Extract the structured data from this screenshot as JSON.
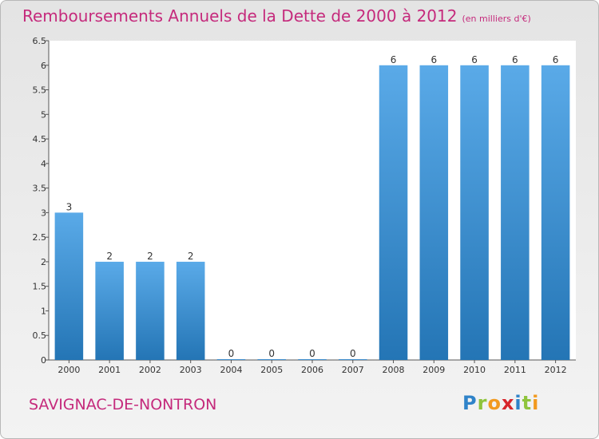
{
  "header": {
    "title": "Remboursements Annuels de la Dette de 2000 à 2012",
    "unit": "(en milliers d'€)"
  },
  "footer": {
    "commune": "SAVIGNAC-DE-NONTRON",
    "logo_letters": [
      "P",
      "r",
      "o",
      "x",
      "i",
      "t",
      "i"
    ],
    "logo_colors": [
      "#2f83c9",
      "#8fc43c",
      "#f29a1f",
      "#d7262c",
      "#2f83c9",
      "#8fc43c",
      "#f29a1f"
    ]
  },
  "colors": {
    "bar_top": "#5aaae8",
    "bar_bottom": "#2475b5",
    "accent": "#c52a7c"
  },
  "chart_data": {
    "type": "bar",
    "categories": [
      "2000",
      "2001",
      "2002",
      "2003",
      "2004",
      "2005",
      "2006",
      "2007",
      "2008",
      "2009",
      "2010",
      "2011",
      "2012"
    ],
    "values": [
      3,
      2,
      2,
      2,
      0,
      0,
      0,
      0,
      6,
      6,
      6,
      6,
      6
    ],
    "labels": [
      "3",
      "2",
      "2",
      "2",
      "0",
      "0",
      "0",
      "0",
      "6",
      "6",
      "6",
      "6",
      "6"
    ],
    "yticks": [
      "0",
      "0.5",
      "1",
      "1.5",
      "2",
      "2.5",
      "3",
      "3.5",
      "4",
      "4.5",
      "5",
      "5.5",
      "6",
      "6.5"
    ],
    "ylim": [
      0,
      6.5
    ],
    "grid": false,
    "legend": "none"
  }
}
